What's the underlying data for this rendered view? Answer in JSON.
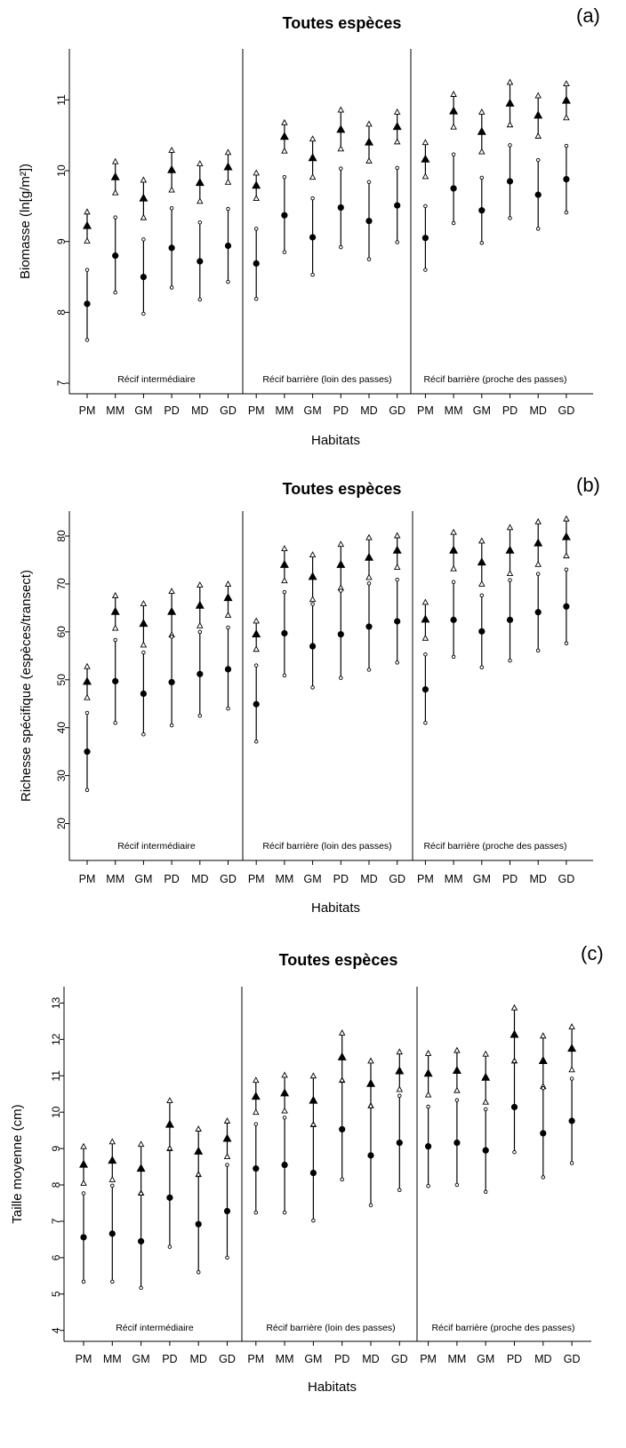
{
  "chart_data": [
    {
      "type": "scatter",
      "panel": "(a)",
      "title": "Toutes espèces",
      "xlabel": "Habitats",
      "ylabel": "Biomasse (ln[g/m²])",
      "categories": [
        "PM",
        "MM",
        "GM",
        "PD",
        "MD",
        "GD",
        "PM",
        "MM",
        "GM",
        "PD",
        "MD",
        "GD",
        "PM",
        "MM",
        "GM",
        "PD",
        "MD",
        "GD"
      ],
      "yticks": [
        7,
        8,
        9,
        10,
        11
      ],
      "ylim": [
        6.85,
        11.72
      ],
      "regions": [
        "Récif intermédiaire",
        "Récif barrière (loin des passes)",
        "Récif barrière (proche des passes)"
      ],
      "series": [
        {
          "marker": "triangle",
          "values": [
            9.22,
            9.91,
            9.61,
            10.01,
            9.83,
            10.05,
            9.79,
            10.48,
            10.18,
            10.58,
            10.4,
            10.62,
            10.16,
            10.84,
            10.55,
            10.95,
            10.78,
            10.99
          ],
          "lower": [
            9.01,
            9.69,
            9.34,
            9.73,
            9.57,
            9.84,
            9.61,
            10.28,
            9.91,
            10.31,
            10.14,
            10.41,
            9.92,
            10.62,
            10.27,
            10.65,
            10.49,
            10.75
          ],
          "upper": [
            9.42,
            10.13,
            9.87,
            10.29,
            10.1,
            10.26,
            9.97,
            10.68,
            10.45,
            10.86,
            10.66,
            10.83,
            10.4,
            11.08,
            10.83,
            11.25,
            11.06,
            11.23
          ]
        },
        {
          "marker": "circle",
          "values": [
            8.12,
            8.8,
            8.5,
            8.91,
            8.72,
            8.94,
            8.69,
            9.37,
            9.06,
            9.48,
            9.29,
            9.51,
            9.05,
            9.75,
            9.44,
            9.85,
            9.66,
            9.88
          ],
          "lower": [
            7.61,
            8.28,
            7.98,
            8.35,
            8.18,
            8.43,
            8.19,
            8.85,
            8.53,
            8.92,
            8.75,
            8.99,
            8.6,
            9.26,
            8.98,
            9.33,
            9.18,
            9.41
          ],
          "upper": [
            8.6,
            9.34,
            9.03,
            9.47,
            9.27,
            9.46,
            9.18,
            9.91,
            9.61,
            10.03,
            9.84,
            10.04,
            9.5,
            10.23,
            9.9,
            10.36,
            10.15,
            10.35
          ]
        }
      ]
    },
    {
      "type": "scatter",
      "panel": "(b)",
      "title": "Toutes espèces",
      "xlabel": "Habitats",
      "ylabel": "Richesse spécifique (espèces/transect)",
      "categories": [
        "PM",
        "MM",
        "GM",
        "PD",
        "MD",
        "GD",
        "PM",
        "MM",
        "GM",
        "PD",
        "MD",
        "GD",
        "PM",
        "MM",
        "GM",
        "PD",
        "MD",
        "GD"
      ],
      "yticks": [
        20,
        30,
        40,
        50,
        60,
        70,
        80
      ],
      "ylim": [
        12.3,
        85.2
      ],
      "regions": [
        "Récif intermédiaire",
        "Récif barrière (loin des passes)",
        "Récif barrière (proche des passes)"
      ],
      "series": [
        {
          "marker": "triangle",
          "values": [
            49.6,
            64.2,
            61.7,
            64.2,
            65.5,
            67.1,
            59.5,
            74.0,
            71.5,
            74.0,
            75.5,
            77.0,
            62.6,
            77.0,
            74.5,
            77.0,
            78.5,
            79.8
          ],
          "lower": [
            46.3,
            60.8,
            57.3,
            59.4,
            61.3,
            63.5,
            56.4,
            70.7,
            66.8,
            69.2,
            71.4,
            73.5,
            58.7,
            73.2,
            70.0,
            72.2,
            74.1,
            75.9
          ],
          "upper": [
            52.8,
            67.6,
            65.9,
            68.5,
            69.8,
            70.0,
            62.3,
            77.4,
            76.1,
            78.3,
            79.7,
            80.1,
            66.2,
            80.8,
            79.0,
            81.8,
            83.0,
            83.6
          ]
        },
        {
          "marker": "circle",
          "values": [
            35.0,
            49.7,
            47.1,
            49.5,
            51.2,
            52.2,
            44.9,
            59.7,
            57.0,
            59.5,
            61.1,
            62.2,
            48.0,
            62.5,
            60.1,
            62.5,
            64.1,
            65.3
          ],
          "lower": [
            27.0,
            41.0,
            38.6,
            40.5,
            42.5,
            44.0,
            37.1,
            50.9,
            48.4,
            50.4,
            52.1,
            53.6,
            41.0,
            54.8,
            52.6,
            54.0,
            56.1,
            57.6
          ],
          "upper": [
            43.1,
            58.3,
            55.7,
            59.0,
            60.0,
            60.9,
            53.0,
            68.3,
            65.8,
            68.6,
            70.1,
            70.9,
            55.3,
            70.4,
            67.6,
            70.8,
            72.1,
            73.0
          ]
        }
      ]
    },
    {
      "type": "scatter",
      "panel": "(c)",
      "title": "Toutes espèces",
      "xlabel": "Habitats",
      "ylabel": "Taille moyenne (cm)",
      "categories": [
        "PM",
        "MM",
        "GM",
        "PD",
        "MD",
        "GD",
        "PM",
        "MM",
        "GM",
        "PD",
        "MD",
        "GD",
        "PM",
        "MM",
        "GM",
        "PD",
        "MD",
        "GD"
      ],
      "yticks": [
        4,
        5,
        6,
        7,
        8,
        9,
        10,
        11,
        12,
        13
      ],
      "ylim": [
        3.7,
        13.45
      ],
      "regions": [
        "Récif intermédiaire",
        "Récif barrière (loin des passes)",
        "Récif barrière (proche des passes)"
      ],
      "series": [
        {
          "marker": "triangle",
          "values": [
            8.56,
            8.67,
            8.45,
            9.66,
            8.92,
            9.27,
            10.43,
            10.52,
            10.32,
            11.51,
            10.78,
            11.13,
            11.06,
            11.14,
            10.95,
            12.13,
            11.41,
            11.75
          ],
          "lower": [
            8.05,
            8.15,
            7.78,
            9.0,
            8.29,
            8.78,
            10.0,
            10.04,
            9.66,
            10.88,
            10.18,
            10.63,
            10.48,
            10.6,
            10.28,
            11.41,
            10.71,
            11.17
          ],
          "upper": [
            9.06,
            9.19,
            9.12,
            10.32,
            9.54,
            9.76,
            10.88,
            11.02,
            11.0,
            12.18,
            11.41,
            11.66,
            11.62,
            11.7,
            11.6,
            12.87,
            12.1,
            12.35
          ]
        },
        {
          "marker": "circle",
          "values": [
            6.56,
            6.66,
            6.45,
            7.65,
            6.92,
            7.28,
            8.45,
            8.55,
            8.33,
            9.53,
            8.81,
            9.16,
            9.06,
            9.16,
            8.95,
            10.14,
            9.42,
            9.76
          ],
          "lower": [
            5.34,
            5.34,
            5.17,
            6.3,
            5.6,
            6.0,
            7.24,
            7.24,
            7.02,
            8.15,
            7.44,
            7.86,
            7.97,
            8.0,
            7.81,
            8.9,
            8.21,
            8.6
          ],
          "upper": [
            7.77,
            7.98,
            7.76,
            9.0,
            8.28,
            8.55,
            9.67,
            9.85,
            9.65,
            10.87,
            10.16,
            10.45,
            10.15,
            10.33,
            10.08,
            11.4,
            10.66,
            10.92
          ]
        }
      ]
    }
  ]
}
